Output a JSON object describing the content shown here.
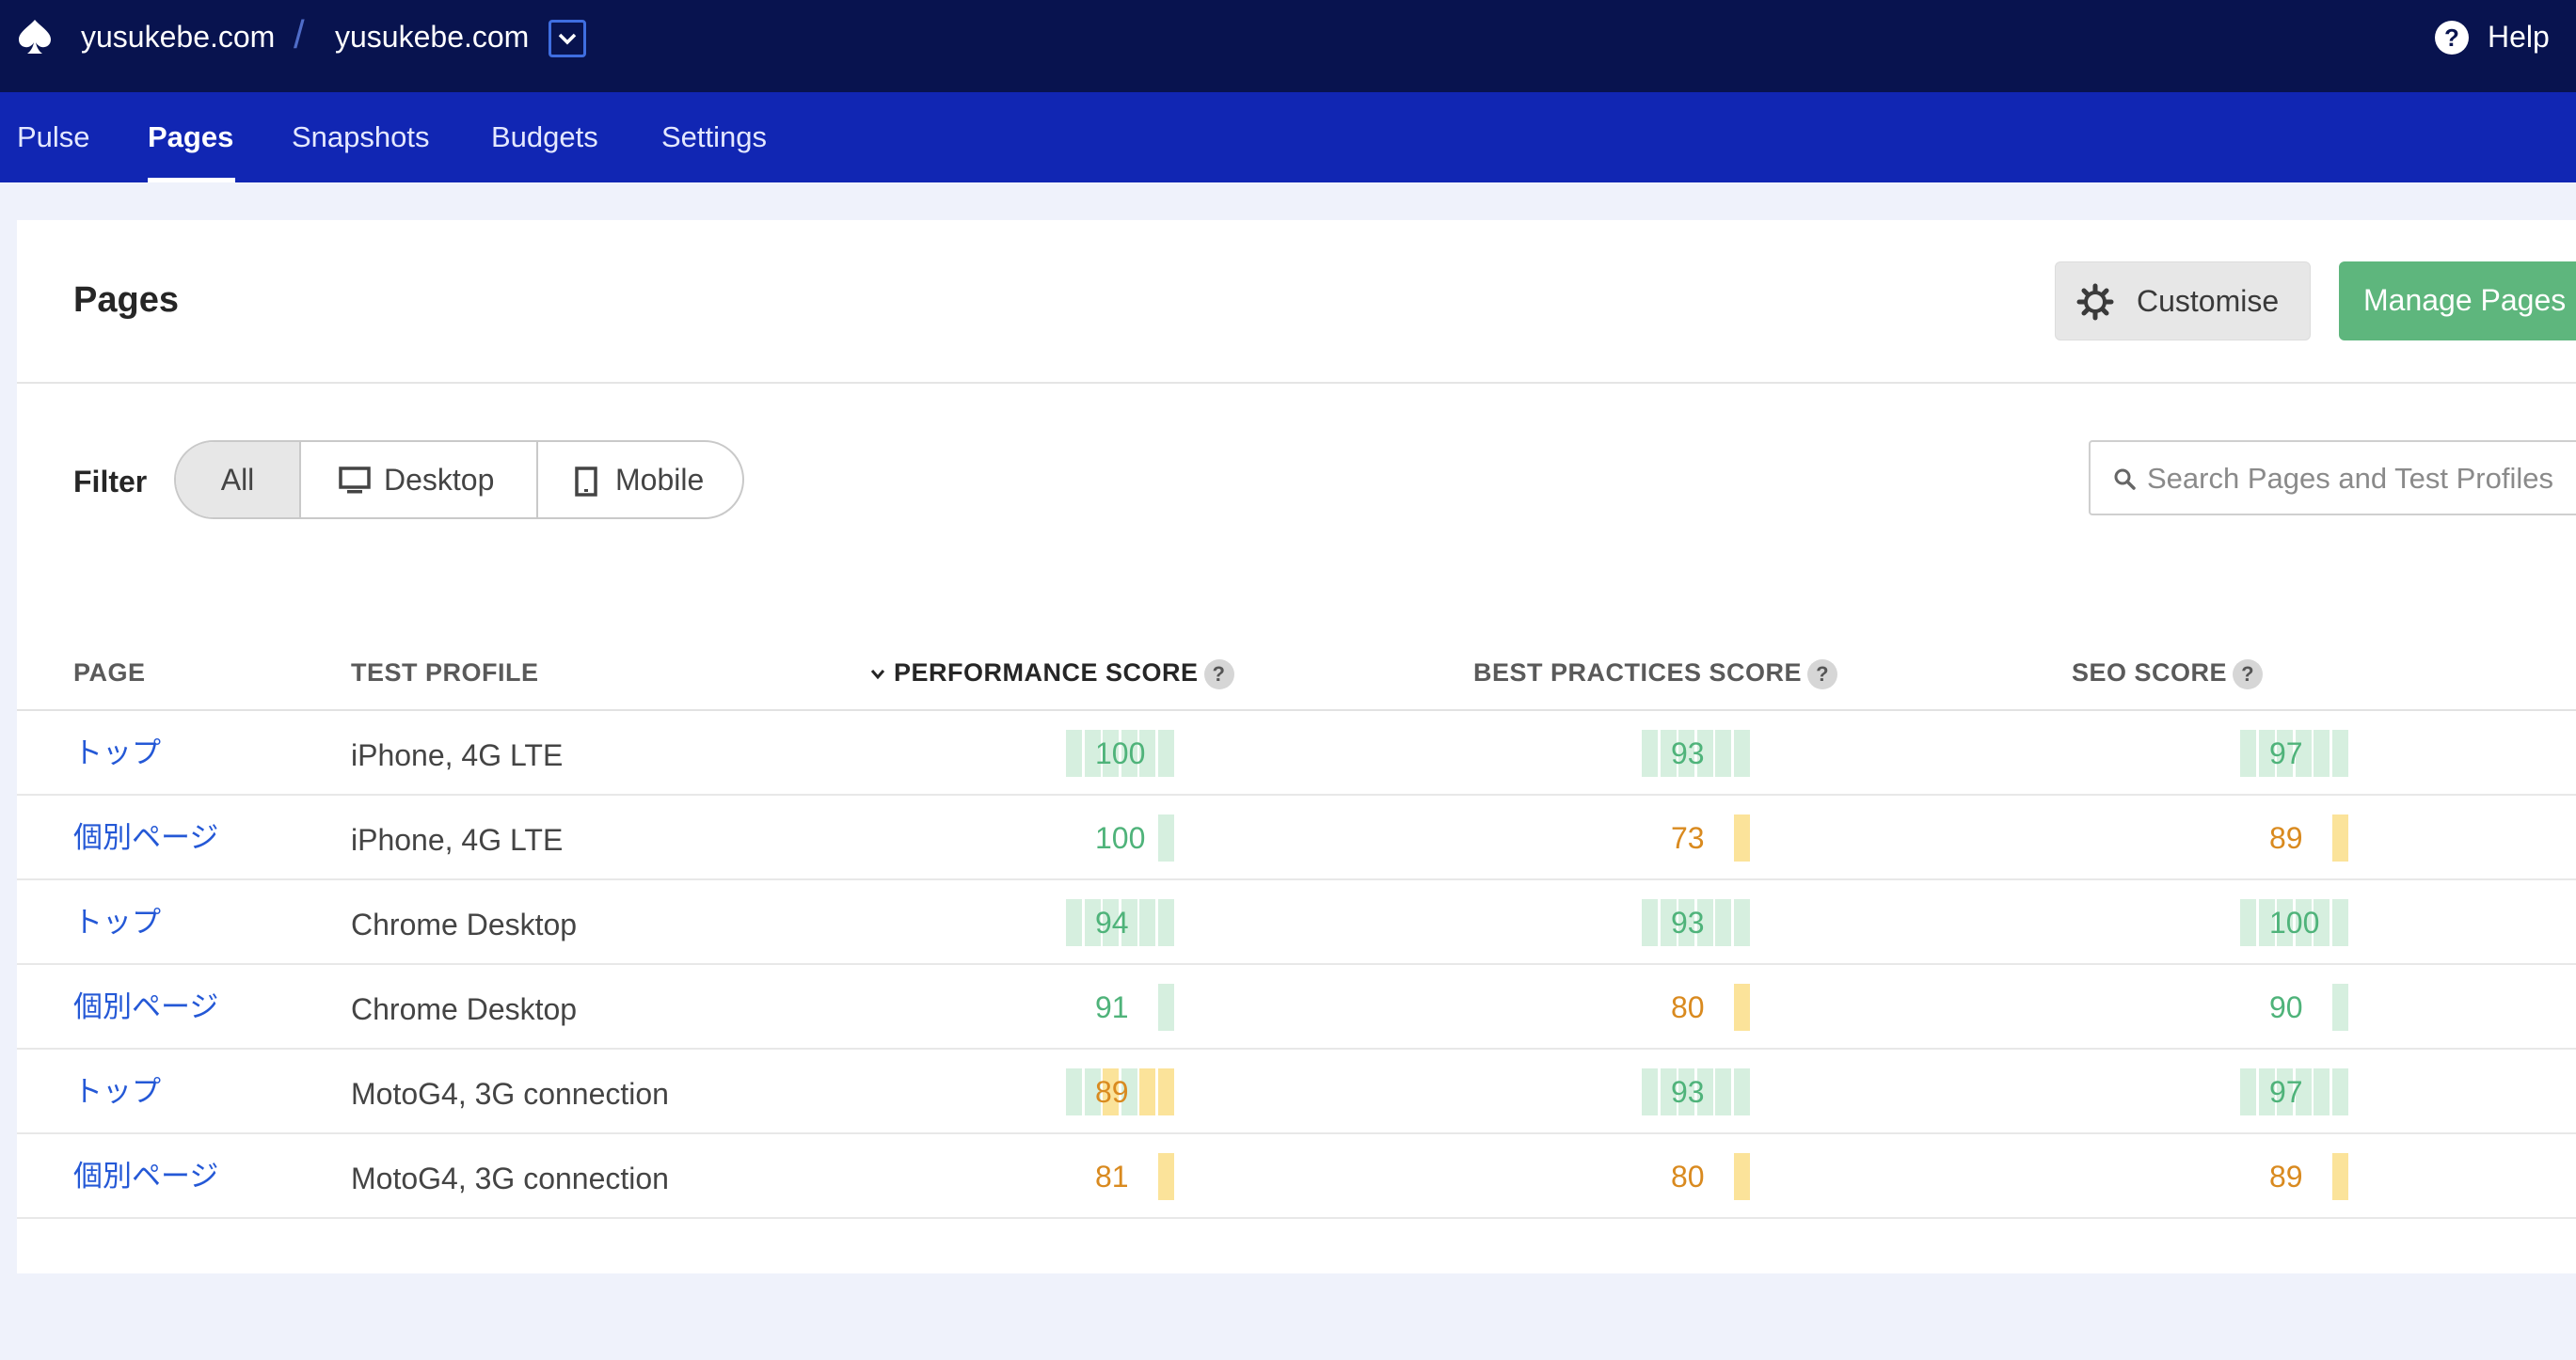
{
  "topbar": {
    "breadcrumb": [
      "yusukebe.com",
      "yusukebe.com"
    ],
    "separator": "/",
    "help_label": "Help",
    "help_icon": "?"
  },
  "nav": {
    "items": [
      "Pulse",
      "Pages",
      "Snapshots",
      "Budgets",
      "Settings"
    ],
    "active": "Pages"
  },
  "header": {
    "title": "Pages",
    "customise_label": "Customise",
    "manage_label": "Manage Pages"
  },
  "filter": {
    "label": "Filter",
    "options": [
      "All",
      "Desktop",
      "Mobile"
    ],
    "selected": "All"
  },
  "search": {
    "placeholder": "Search Pages and Test Profiles"
  },
  "table": {
    "columns": {
      "page": "PAGE",
      "profile": "TEST PROFILE",
      "performance": "PERFORMANCE SCORE",
      "best_practices": "BEST PRACTICES SCORE",
      "seo": "SEO SCORE"
    },
    "help_glyph": "?",
    "rows": [
      {
        "page": "トップ",
        "profile": "iPhone, 4G LTE",
        "performance": "100",
        "best_practices": "93",
        "seo": "97"
      },
      {
        "page": "個別ページ",
        "profile": "iPhone, 4G LTE",
        "performance": "100",
        "best_practices": "73",
        "seo": "89"
      },
      {
        "page": "トップ",
        "profile": "Chrome Desktop",
        "performance": "94",
        "best_practices": "93",
        "seo": "100"
      },
      {
        "page": "個別ページ",
        "profile": "Chrome Desktop",
        "performance": "91",
        "best_practices": "80",
        "seo": "90"
      },
      {
        "page": "トップ",
        "profile": "MotoG4, 3G connection",
        "performance": "89",
        "best_practices": "93",
        "seo": "97"
      },
      {
        "page": "個別ページ",
        "profile": "MotoG4, 3G connection",
        "performance": "81",
        "best_practices": "80",
        "seo": "89"
      }
    ]
  },
  "colors": {
    "topbar": "#08134f",
    "navbar": "#1126b3",
    "good": "#4fb37a",
    "average": "#d98a1f",
    "good_bar": "#d6efdf",
    "average_bar": "#fbe39a",
    "link": "#2458d6"
  }
}
